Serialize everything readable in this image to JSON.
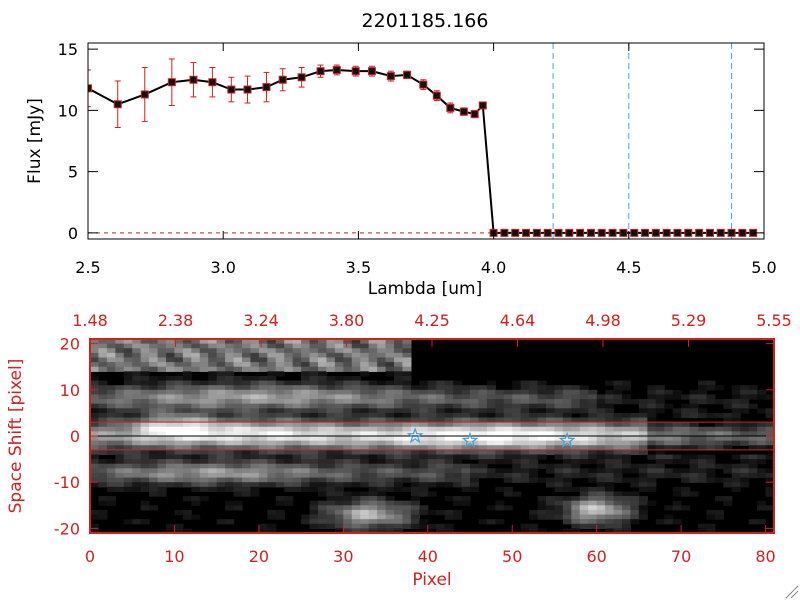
{
  "title": "2201185.166",
  "colors": {
    "axis": "#000000",
    "red": "#cc2222",
    "blue": "#4aa0d8",
    "marker": "#111111"
  },
  "chart_data": [
    {
      "type": "line",
      "title": "2201185.166",
      "xlabel": "Lambda [um]",
      "ylabel": "Flux [mJy]",
      "xlim": [
        2.5,
        5.0
      ],
      "ylim": [
        -0.5,
        15.5
      ],
      "xticks": [
        "2.5",
        "3.0",
        "3.5",
        "4.0",
        "4.5",
        "5.0"
      ],
      "xtick_values": [
        2.5,
        3.0,
        3.5,
        4.0,
        4.5,
        5.0
      ],
      "yticks": [
        "0",
        "5",
        "10",
        "15"
      ],
      "ytick_values": [
        0,
        5,
        10,
        15
      ],
      "series": [
        {
          "name": "flux",
          "x": [
            2.5,
            2.61,
            2.71,
            2.81,
            2.89,
            2.96,
            3.03,
            3.09,
            3.16,
            3.22,
            3.29,
            3.36,
            3.42,
            3.49,
            3.55,
            3.62,
            3.68,
            3.74,
            3.79,
            3.84,
            3.89,
            3.93,
            3.96,
            4.0,
            4.04,
            4.08,
            4.12,
            4.16,
            4.2,
            4.24,
            4.28,
            4.32,
            4.36,
            4.4,
            4.44,
            4.48,
            4.52,
            4.56,
            4.6,
            4.64,
            4.68,
            4.72,
            4.76,
            4.8,
            4.84,
            4.88,
            4.92,
            4.96
          ],
          "y": [
            11.8,
            10.5,
            11.3,
            12.3,
            12.5,
            12.3,
            11.7,
            11.7,
            11.9,
            12.5,
            12.7,
            13.2,
            13.3,
            13.2,
            13.2,
            12.8,
            12.9,
            12.1,
            11.2,
            10.2,
            9.9,
            9.7,
            10.4,
            0,
            0,
            0,
            0,
            0,
            0,
            0,
            0,
            0,
            0,
            0,
            0,
            0,
            0,
            0,
            0,
            0,
            0,
            0,
            0,
            0,
            0,
            0,
            0,
            0
          ],
          "yerr": [
            1.5,
            1.9,
            2.2,
            1.9,
            1.4,
            1.2,
            1.0,
            1.1,
            1.2,
            0.9,
            0.8,
            0.5,
            0.4,
            0.4,
            0.4,
            0.4,
            0.3,
            0.4,
            0.4,
            0.4,
            0.3,
            0.3,
            0.2,
            0,
            0,
            0,
            0,
            0,
            0,
            0,
            0,
            0,
            0,
            0,
            0,
            0,
            0,
            0,
            0,
            0,
            0,
            0,
            0,
            0,
            0,
            0,
            0,
            0
          ]
        }
      ],
      "reference_lines_x": [
        4.22,
        4.5,
        4.88
      ],
      "zero_line": 0
    },
    {
      "type": "heatmap",
      "xlabel": "Pixel",
      "ylabel": "Space Shift [pixel]",
      "xlim": [
        0,
        81
      ],
      "ylim": [
        -21,
        21
      ],
      "xticks": [
        "0",
        "10",
        "20",
        "30",
        "40",
        "50",
        "60",
        "70",
        "80"
      ],
      "xtick_values": [
        0,
        10,
        20,
        30,
        40,
        50,
        60,
        70,
        80
      ],
      "yticks": [
        "-20",
        "-10",
        "0",
        "10",
        "20"
      ],
      "ytick_values": [
        -20,
        -10,
        0,
        10,
        20
      ],
      "top_axis_labels": [
        "1.48",
        "2.38",
        "3.24",
        "3.80",
        "4.25",
        "4.64",
        "4.98",
        "5.29",
        "5.55"
      ],
      "aperture_lines_y": [
        3,
        -3
      ],
      "center_line_y": 0,
      "stars": [
        {
          "x": 38.5,
          "y": 0
        },
        {
          "x": 45,
          "y": -1
        },
        {
          "x": 56.5,
          "y": -1
        }
      ],
      "blobs": [
        {
          "x": 10,
          "y": 2,
          "rx": 5,
          "ry": 3,
          "v": 0.55
        },
        {
          "x": 20,
          "y": 1,
          "rx": 9,
          "ry": 3,
          "v": 0.35
        },
        {
          "x": 47,
          "y": 0,
          "rx": 18,
          "ry": 3,
          "v": 0.5
        },
        {
          "x": 33,
          "y": -17,
          "rx": 5,
          "ry": 3,
          "v": 0.7
        },
        {
          "x": 60,
          "y": -16,
          "rx": 4,
          "ry": 3,
          "v": 0.75
        },
        {
          "x": 20,
          "y": 9,
          "rx": 18,
          "ry": 3,
          "v": 0.35
        },
        {
          "x": 15,
          "y": -8,
          "rx": 12,
          "ry": 2.5,
          "v": 0.3
        }
      ]
    }
  ]
}
